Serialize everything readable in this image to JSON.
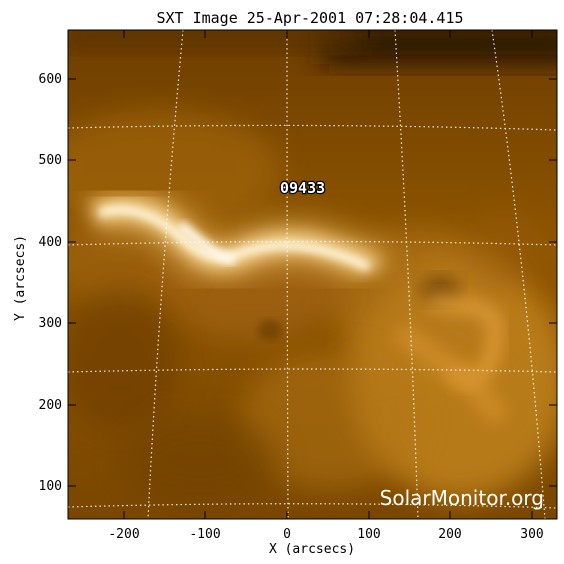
{
  "title": "SXT Image 25-Apr-2001 07:28:04.415",
  "xlabel": "X (arcsecs)",
  "ylabel": "Y (arcsecs)",
  "xticks": [
    "-200",
    "-100",
    "0",
    "100",
    "200",
    "300"
  ],
  "yticks": [
    "100",
    "200",
    "300",
    "400",
    "500",
    "600"
  ],
  "active_region": "09433",
  "watermark": "SolarMonitor.org",
  "colors": {
    "sun_base": "#8a5000",
    "loop_bright": "#fff6dc",
    "grid": "#ffffff"
  }
}
